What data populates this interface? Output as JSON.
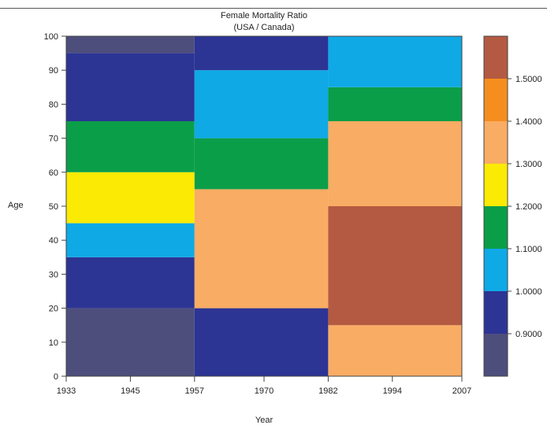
{
  "chart_data": {
    "type": "heatmap",
    "title": "Female Mortality Ratio",
    "subtitle": "(USA / Canada)",
    "xlabel": "Year",
    "ylabel": "Age",
    "xlim": [
      1933,
      2007
    ],
    "ylim": [
      0,
      100
    ],
    "x_ticks": [
      "1933",
      "1945",
      "1957",
      "1970",
      "1982",
      "1994",
      "2007"
    ],
    "y_ticks": [
      "0",
      "10",
      "20",
      "30",
      "40",
      "50",
      "60",
      "70",
      "80",
      "90",
      "100"
    ],
    "legend_labels": [
      "0.9000",
      "1.0000",
      "1.1000",
      "1.2000",
      "1.3000",
      "1.4000",
      "1.5000"
    ],
    "legend_placement": "right",
    "colors": [
      "#4e4e7c",
      "#2c3494",
      "#0fa9e6",
      "#0b9e49",
      "#fbea04",
      "#f9ac63",
      "#f58e1f",
      "#b55a42"
    ],
    "color_bins": [
      {
        "range": "< 0.9000",
        "color": "#4e4e7c"
      },
      {
        "range": "0.9000 - 1.0000",
        "color": "#2c3494"
      },
      {
        "range": "1.0000 - 1.1000",
        "color": "#0fa9e6"
      },
      {
        "range": "1.1000 - 1.2000",
        "color": "#0b9e49"
      },
      {
        "range": "1.2000 - 1.3000",
        "color": "#fbea04"
      },
      {
        "range": "1.3000 - 1.4000",
        "color": "#f9ac63"
      },
      {
        "range": "1.4000 - 1.5000",
        "color": "#f58e1f"
      },
      {
        "range": "> 1.5000",
        "color": "#b55a42"
      }
    ],
    "regions": [
      {
        "years": [
          1933,
          1957
        ],
        "ages": [
          0,
          20
        ],
        "level": 0
      },
      {
        "years": [
          1933,
          1957
        ],
        "ages": [
          20,
          35
        ],
        "level": 1
      },
      {
        "years": [
          1933,
          1957
        ],
        "ages": [
          35,
          45
        ],
        "level": 2
      },
      {
        "years": [
          1933,
          1957
        ],
        "ages": [
          45,
          60
        ],
        "level": 4
      },
      {
        "years": [
          1933,
          1957
        ],
        "ages": [
          60,
          75
        ],
        "level": 3
      },
      {
        "years": [
          1933,
          1957
        ],
        "ages": [
          75,
          95
        ],
        "level": 1
      },
      {
        "years": [
          1933,
          1957
        ],
        "ages": [
          95,
          100
        ],
        "level": 0
      },
      {
        "years": [
          1957,
          1982
        ],
        "ages": [
          0,
          20
        ],
        "level": 1
      },
      {
        "years": [
          1957,
          1982
        ],
        "ages": [
          20,
          55
        ],
        "level": 5
      },
      {
        "years": [
          1957,
          1982
        ],
        "ages": [
          55,
          70
        ],
        "level": 3
      },
      {
        "years": [
          1957,
          1982
        ],
        "ages": [
          70,
          90
        ],
        "level": 2
      },
      {
        "years": [
          1957,
          1982
        ],
        "ages": [
          90,
          100
        ],
        "level": 1
      },
      {
        "years": [
          1982,
          2007
        ],
        "ages": [
          0,
          15
        ],
        "level": 5
      },
      {
        "years": [
          1982,
          2007
        ],
        "ages": [
          15,
          50
        ],
        "level": 7
      },
      {
        "years": [
          1982,
          2007
        ],
        "ages": [
          50,
          75
        ],
        "level": 5
      },
      {
        "years": [
          1982,
          2007
        ],
        "ages": [
          75,
          85
        ],
        "level": 3
      },
      {
        "years": [
          1982,
          2007
        ],
        "ages": [
          85,
          100
        ],
        "level": 2
      }
    ]
  }
}
